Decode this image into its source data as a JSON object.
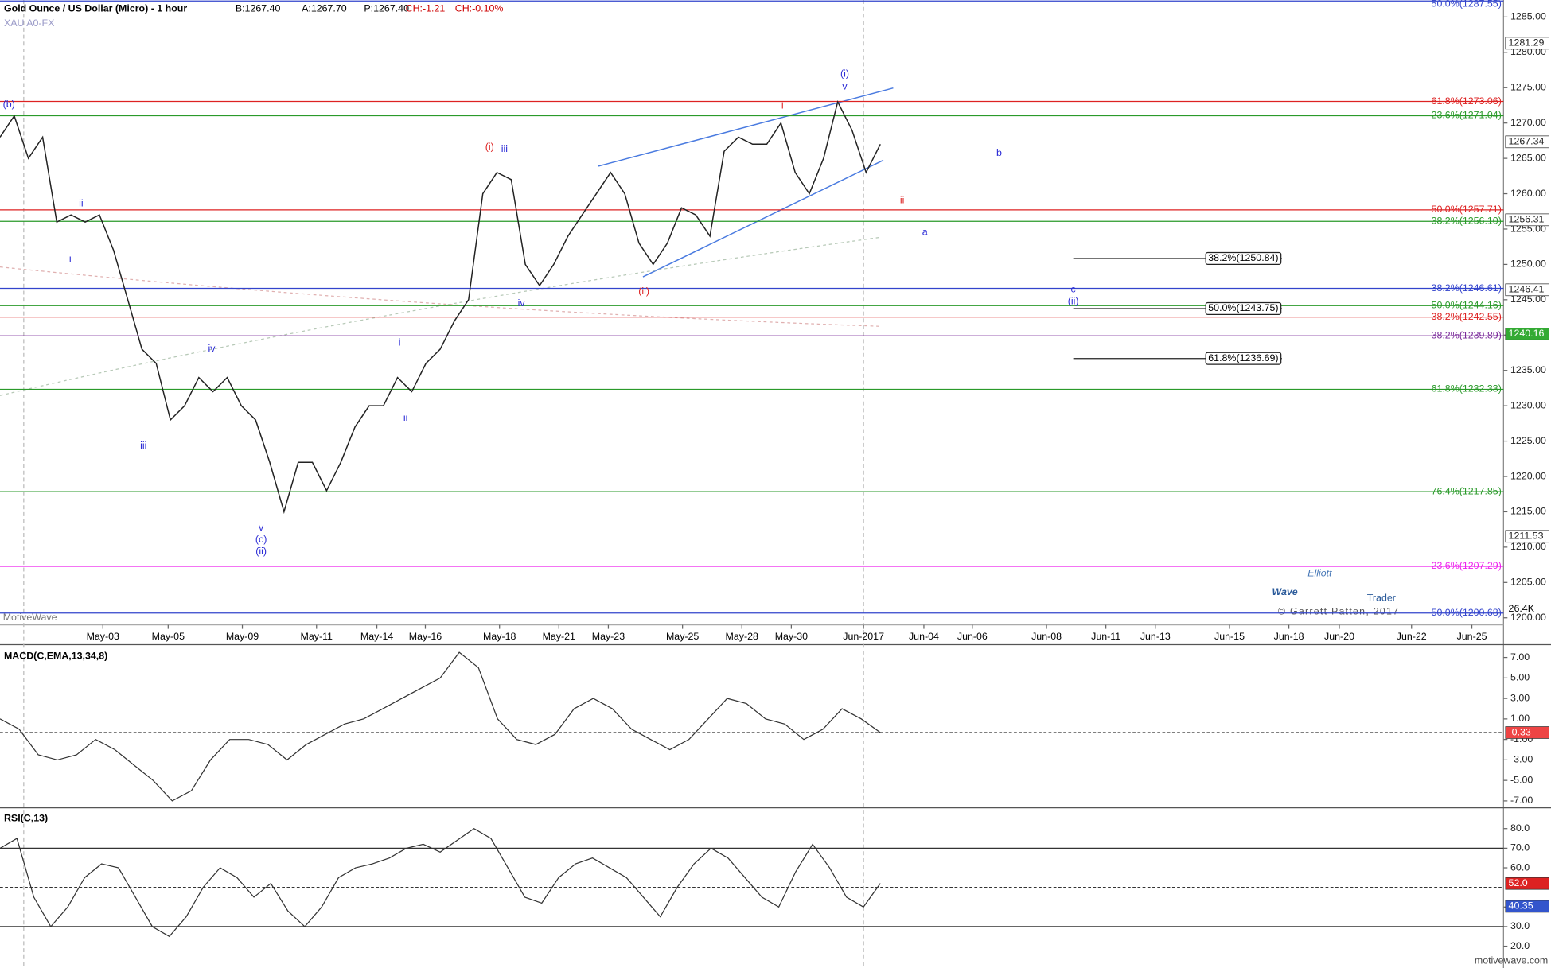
{
  "header": {
    "title": "Gold Ounce / US Dollar (Micro) - 1 hour",
    "bid": "B:1267.40",
    "ask": "A:1267.70",
    "price": "P:1267.40",
    "change": "CH:-1.21",
    "change_pct": "CH:-0.10%",
    "symbol": "XAU A0-FX"
  },
  "watermark": "MotiveWave",
  "logo": {
    "line1": "Elliott",
    "line2": "Wave",
    "line3": "Trader",
    "copyright": "© Garrett Patten, 2017"
  },
  "footer": "motivewave.com",
  "chart_data": [
    {
      "type": "line",
      "name": "price",
      "color": "#222222",
      "values": [
        1268,
        1271,
        1265,
        1268,
        1256,
        1257,
        1256,
        1257,
        1252,
        1245,
        1238,
        1236,
        1228,
        1230,
        1234,
        1232,
        1234,
        1230,
        1228,
        1222,
        1215,
        1222,
        1222,
        1218,
        1222,
        1227,
        1230,
        1230,
        1234,
        1232,
        1236,
        1238,
        1242,
        1245,
        1260,
        1263,
        1262,
        1250,
        1247,
        1250,
        1254,
        1257,
        1260,
        1263,
        1260,
        1253,
        1250,
        1253,
        1258,
        1257,
        1254,
        1266,
        1268,
        1267,
        1267,
        1270,
        1263,
        1260,
        1265,
        1273,
        1269,
        1263,
        1267
      ],
      "ylim": [
        1199,
        1287.4
      ],
      "yticks": [
        {
          "value": 1285,
          "label": "1285.00"
        },
        {
          "value": 1280,
          "label": "1280.00"
        },
        {
          "value": 1275,
          "label": "1275.00"
        },
        {
          "value": 1270,
          "label": "1270.00"
        },
        {
          "value": 1265,
          "label": "1265.00"
        },
        {
          "value": 1260,
          "label": "1260.00"
        },
        {
          "value": 1255,
          "label": "1255.00"
        },
        {
          "value": 1250,
          "label": "1250.00"
        },
        {
          "value": 1245,
          "label": "1245.00"
        },
        {
          "value": 1240,
          "label": "1240.00"
        },
        {
          "value": 1235,
          "label": "1235.00"
        },
        {
          "value": 1230,
          "label": "1230.00"
        },
        {
          "value": 1225,
          "label": "1225.00"
        },
        {
          "value": 1220,
          "label": "1220.00"
        },
        {
          "value": 1215,
          "label": "1215.00"
        },
        {
          "value": 1210,
          "label": "1210.00"
        },
        {
          "value": 1205,
          "label": "1205.00"
        },
        {
          "value": 1200,
          "label": "1200.00"
        }
      ],
      "price_markers": [
        1281.29,
        1267.34,
        1256.31,
        1246.41,
        1240.16,
        1211.53
      ],
      "volume_marker": "26.4K",
      "fib_levels": [
        {
          "label": "50.0%(1287.55)",
          "value": 1287.55,
          "color": "#3344cc"
        },
        {
          "label": "61.8%(1273.06)",
          "value": 1273.06,
          "color": "#dd2222"
        },
        {
          "label": "23.6%(1271.04)",
          "value": 1271.04,
          "color": "#2a9a2a"
        },
        {
          "label": "50.0%(1257.71)",
          "value": 1257.71,
          "color": "#dd2222"
        },
        {
          "label": "38.2%(1256.10)",
          "value": 1256.1,
          "color": "#2a9a2a"
        },
        {
          "label": "38.2%(1246.61)",
          "value": 1246.61,
          "color": "#3344cc"
        },
        {
          "label": "50.0%(1244.16)",
          "value": 1244.16,
          "color": "#2a9a2a"
        },
        {
          "label": "38.2%(1242.55)",
          "value": 1242.55,
          "color": "#dd2222"
        },
        {
          "label": "38.2%(1239.89)",
          "value": 1239.89,
          "color": "#7a2a9a"
        },
        {
          "label": "61.8%(1232.33)",
          "value": 1232.33,
          "color": "#2a9a2a"
        },
        {
          "label": "76.4%(1217.85)",
          "value": 1217.85,
          "color": "#2a9a2a"
        },
        {
          "label": "23.6%(1207.29)",
          "value": 1207.29,
          "color": "#ee22ee"
        },
        {
          "label": "50.0%(1200.68)",
          "value": 1200.68,
          "color": "#3344cc"
        }
      ],
      "projection_levels": [
        {
          "label": "38.2%(1250.84)",
          "value": 1250.84
        },
        {
          "label": "50.0%(1243.75)",
          "value": 1243.75
        },
        {
          "label": "61.8%(1236.69)",
          "value": 1236.69
        }
      ],
      "annotations": [
        {
          "text": "(b)",
          "color": "#2b2bd6"
        },
        {
          "text": "ii",
          "color": "#2b2bd6"
        },
        {
          "text": "i",
          "color": "#2b2bd6"
        },
        {
          "text": "iii",
          "color": "#2b2bd6"
        },
        {
          "text": "iv",
          "color": "#2b2bd6"
        },
        {
          "text": "v",
          "color": "#2b2bd6"
        },
        {
          "text": "(c)",
          "color": "#2b2bd6"
        },
        {
          "text": "(ii)",
          "color": "#2b2bd6"
        },
        {
          "text": "i",
          "color": "#2b2bd6"
        },
        {
          "text": "ii",
          "color": "#2b2bd6"
        },
        {
          "text": "(i)",
          "color": "#dd2222"
        },
        {
          "text": "iii",
          "color": "#2b2bd6"
        },
        {
          "text": "iv",
          "color": "#2b2bd6"
        },
        {
          "text": "(ii)",
          "color": "#dd2222"
        },
        {
          "text": "i",
          "color": "#dd2222"
        },
        {
          "text": "(i)",
          "color": "#2b2bd6"
        },
        {
          "text": "v",
          "color": "#2b2bd6"
        },
        {
          "text": "ii",
          "color": "#dd2222"
        },
        {
          "text": "a",
          "color": "#2b2bd6"
        },
        {
          "text": "b",
          "color": "#2b2bd6"
        },
        {
          "text": "c",
          "color": "#2b2bd6"
        },
        {
          "text": "(ii)",
          "color": "#2b2bd6"
        }
      ],
      "date_labels": [
        "May-03",
        "May-05",
        "May-09",
        "May-11",
        "May-14",
        "May-16",
        "May-18",
        "May-21",
        "May-23",
        "May-25",
        "May-28",
        "May-30",
        "Jun-2017",
        "Jun-04",
        "Jun-06",
        "Jun-08",
        "Jun-11",
        "Jun-13",
        "Jun-15",
        "Jun-18",
        "Jun-20",
        "Jun-22",
        "Jun-25"
      ]
    },
    {
      "type": "line",
      "name": "MACD(C,EMA,13,34,8)",
      "color": "#333333",
      "values": [
        1,
        0,
        -2.5,
        -3,
        -2.5,
        -1,
        -2,
        -3.5,
        -5,
        -7,
        -6,
        -3,
        -1,
        -1,
        -1.5,
        -3,
        -1.5,
        -0.5,
        0.5,
        1,
        2,
        3,
        4,
        5,
        7.5,
        6,
        1,
        -1,
        -1.5,
        -0.5,
        2,
        3,
        2,
        0,
        -1,
        -2,
        -1,
        1,
        3,
        2.5,
        1,
        0.5,
        -1,
        0,
        2,
        1,
        -0.33
      ],
      "ylim": [
        -7.48,
        8.25
      ],
      "yticks": [
        {
          "value": 7,
          "label": "7.00"
        },
        {
          "value": 5,
          "label": "5.00"
        },
        {
          "value": 3,
          "label": "3.00"
        },
        {
          "value": 1,
          "label": "1.00"
        },
        {
          "value": -1,
          "label": "-1.00"
        },
        {
          "value": -3,
          "label": "-3.00"
        },
        {
          "value": -5,
          "label": "-5.00"
        },
        {
          "value": -7,
          "label": "-7.00"
        }
      ],
      "marker": {
        "value": -0.33,
        "label": "-0.33"
      }
    },
    {
      "type": "line",
      "name": "RSI(C,13)",
      "color": "#333333",
      "values": [
        70,
        75,
        45,
        30,
        40,
        55,
        62,
        60,
        45,
        30,
        25,
        35,
        50,
        60,
        55,
        45,
        52,
        38,
        30,
        40,
        55,
        60,
        62,
        65,
        70,
        72,
        68,
        74,
        80,
        75,
        60,
        45,
        42,
        55,
        62,
        65,
        60,
        55,
        45,
        35,
        50,
        62,
        70,
        65,
        55,
        45,
        40,
        58,
        72,
        60,
        45,
        40,
        52
      ],
      "ylim": [
        9.9,
        89.1
      ],
      "yticks": [
        {
          "value": 80,
          "label": "80.0"
        },
        {
          "value": 70,
          "label": "70.0"
        },
        {
          "value": 60,
          "label": "60.0"
        },
        {
          "value": 40,
          "label": "40.0"
        },
        {
          "value": 30,
          "label": "30.0"
        },
        {
          "value": 20,
          "label": "20.0"
        }
      ],
      "levels": [
        70,
        50,
        30
      ],
      "markers": [
        {
          "value": 52,
          "label": "52.0",
          "color": "#dd2222"
        },
        {
          "value": 40.35,
          "label": "40.35",
          "color": "#3355cc"
        }
      ]
    }
  ]
}
